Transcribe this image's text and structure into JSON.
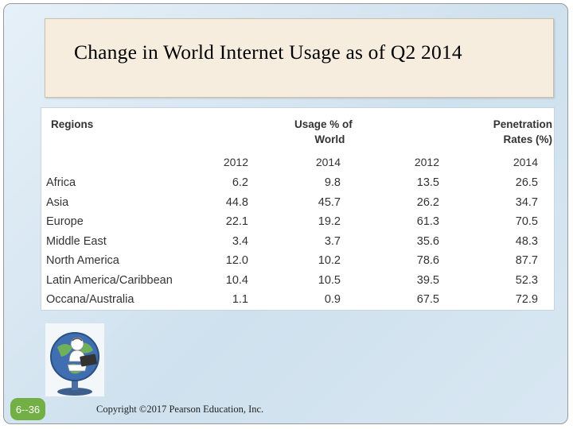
{
  "slide": {
    "title": "Change in World Internet Usage as of Q2 2014",
    "page_number": "6--36",
    "copyright": "Copyright ©2017 Pearson Education, Inc.",
    "colors": {
      "title_bg": "#f6eddf",
      "badge": "#72b045",
      "frame_bg": "#dbe8f2"
    }
  },
  "table": {
    "header_regions": "Regions",
    "header_usage_line1": "Usage % of",
    "header_usage_line2": "World",
    "header_pen_line1": "Penetration",
    "header_pen_line2": "Rates (%)",
    "years": [
      "2012",
      "2014",
      "2012",
      "2014"
    ],
    "rows": [
      {
        "region": "Africa",
        "usage_2012": "6.2",
        "usage_2014": "9.8",
        "pen_2012": "13.5",
        "pen_2014": "26.5"
      },
      {
        "region": "Asia",
        "usage_2012": "44.8",
        "usage_2014": "45.7",
        "pen_2012": "26.2",
        "pen_2014": "34.7"
      },
      {
        "region": "Europe",
        "usage_2012": "22.1",
        "usage_2014": "19.2",
        "pen_2012": "61.3",
        "pen_2014": "70.5"
      },
      {
        "region": "Middle East",
        "usage_2012": "3.4",
        "usage_2014": "3.7",
        "pen_2012": "35.6",
        "pen_2014": "48.3"
      },
      {
        "region": "North America",
        "usage_2012": "12.0",
        "usage_2014": "10.2",
        "pen_2012": "78.6",
        "pen_2014": "87.7"
      },
      {
        "region": "Latin America/Caribbean",
        "usage_2012": "10.4",
        "usage_2014": "10.5",
        "pen_2012": "39.5",
        "pen_2014": "52.3"
      },
      {
        "region": "Occana/Australia",
        "usage_2012": "1.1",
        "usage_2014": "0.9",
        "pen_2012": "67.5",
        "pen_2014": "72.9"
      }
    ]
  },
  "icons": {
    "logo": "person-on-globe-with-laptop-icon"
  }
}
